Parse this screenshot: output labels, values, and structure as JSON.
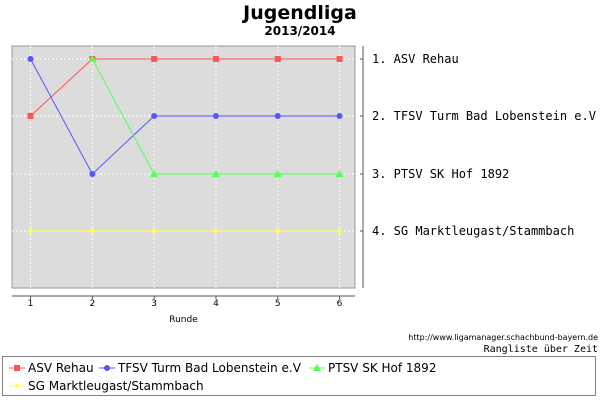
{
  "chart_data": {
    "type": "line",
    "title": "Jugendliga",
    "subtitle": "2013/2014",
    "xlabel": "Runde",
    "x": [
      1,
      2,
      3,
      4,
      5,
      6
    ],
    "x_ticks": [
      "1",
      "2",
      "3",
      "4",
      "5",
      "6"
    ],
    "ylim": [
      1,
      4
    ],
    "y_inverted": true,
    "y_tick_labels": [
      "1. ASV Rehau",
      "2. TFSV Turm Bad Lobenstein e.V",
      "3. PTSV SK Hof 1892",
      "4. SG Marktleugast/Stammbach"
    ],
    "grid": true,
    "legend_position": "bottom",
    "series": [
      {
        "name": "ASV Rehau",
        "values": [
          2,
          1,
          1,
          1,
          1,
          1
        ],
        "color": "#ff5555",
        "marker": "square"
      },
      {
        "name": "TFSV Turm Bad Lobenstein e.V",
        "values": [
          1,
          3,
          2,
          2,
          2,
          2
        ],
        "color": "#5555ff",
        "marker": "circle"
      },
      {
        "name": "PTSV SK Hof 1892",
        "values": [
          null,
          1,
          3,
          3,
          3,
          3
        ],
        "color": "#55ff55",
        "marker": "triangle"
      },
      {
        "name": "SG Marktleugast/Stammbach",
        "values": [
          4,
          4,
          4,
          4,
          4,
          4
        ],
        "color": "#ffff55",
        "marker": "diamond"
      }
    ]
  },
  "footer": {
    "url": "http://www.ligamanager.schachbund-bayern.de",
    "note": "Rangliste über Zeit"
  }
}
